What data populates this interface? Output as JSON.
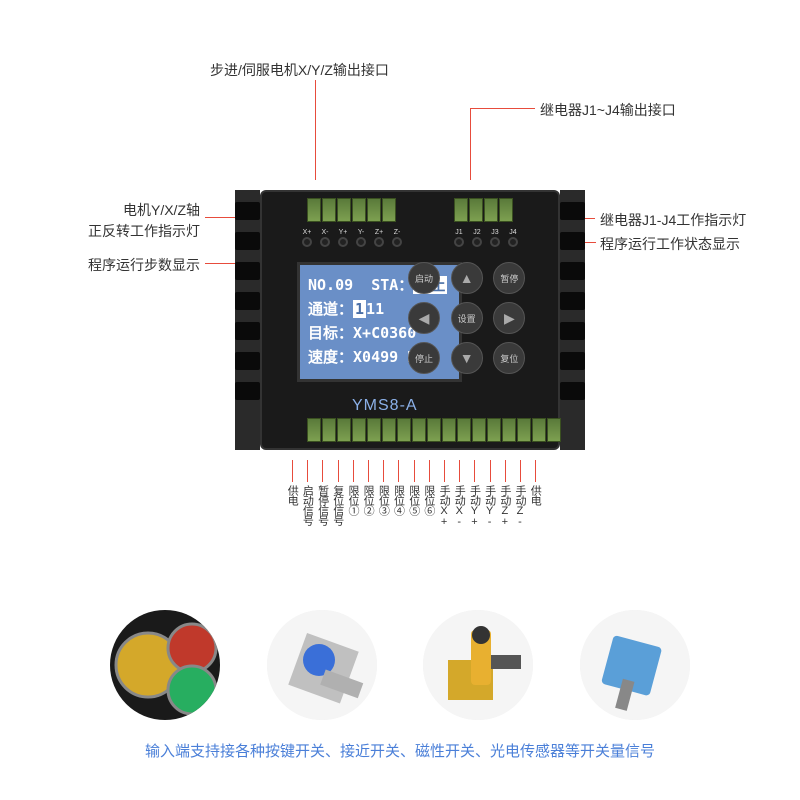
{
  "callouts": {
    "top_left": "步进/伺服电机X/Y/Z输出接口",
    "top_right": "继电器J1~J4输出接口",
    "left_1_line1": "电机Y/X/Z轴",
    "left_1_line2": "正反转工作指示灯",
    "left_2": "程序运行步数显示",
    "right_1": "继电器J1-J4工作指示灯",
    "right_2": "程序运行工作状态显示"
  },
  "device": {
    "model": "YMS8-A",
    "leds_left": [
      "X+",
      "X-",
      "Y+",
      "Y-",
      "Z+",
      "Z-"
    ],
    "leds_right": [
      "J1",
      "J2",
      "J3",
      "J4"
    ],
    "lcd": {
      "line1_a": "NO.09",
      "line1_b": "STA：",
      "line1_c": "停止",
      "line2_a": "通道：",
      "line2_b": "1",
      "line2_c": "11",
      "line3_a": "目标：",
      "line3_b": "X+C0360°",
      "line4_a": "速度：",
      "line4_b": "X0499  RPM"
    },
    "buttons": [
      "启动",
      "▲",
      "暂停",
      "◀",
      "设置",
      "▶",
      "停止",
      "▼",
      "复位"
    ]
  },
  "bottom_labels": [
    "供电",
    "启动信号",
    "暂停信号",
    "复位信号",
    "限位①",
    "限位②",
    "限位③",
    "限位④",
    "限位⑤",
    "限位⑥",
    "手动X+",
    "手动X-",
    "手动Y+",
    "手动Y-",
    "手动Z+",
    "手动Z-",
    "供电"
  ],
  "footer": "输入端支持接各种按键开关、接近开关、磁性开关、光电传感器等开关量信号",
  "colors": {
    "line": "#e74c3c",
    "lcd_bg": "#6a8fc7",
    "footer_text": "#4a7fd8"
  }
}
